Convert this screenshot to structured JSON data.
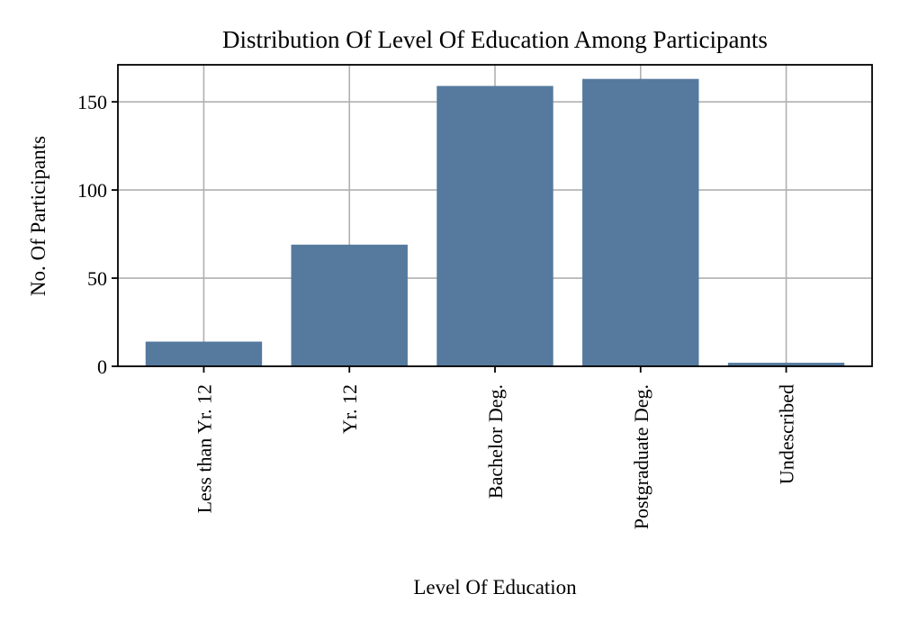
{
  "chart_data": {
    "type": "bar",
    "title": "Distribution Of Level Of Education Among Participants",
    "xlabel": "Level Of Education",
    "ylabel": "No. Of Participants",
    "categories": [
      "Less than Yr. 12",
      "Yr. 12",
      "Bachelor Deg.",
      "Postgraduate Deg.",
      "Undescribed"
    ],
    "values": [
      14,
      69,
      159,
      163,
      2
    ],
    "ylim": [
      0,
      171
    ],
    "yticks": [
      0,
      50,
      100,
      150
    ],
    "ytick_labels": [
      "0",
      "50",
      "100",
      "150"
    ],
    "grid": true,
    "bar_color": "#557a9e"
  }
}
